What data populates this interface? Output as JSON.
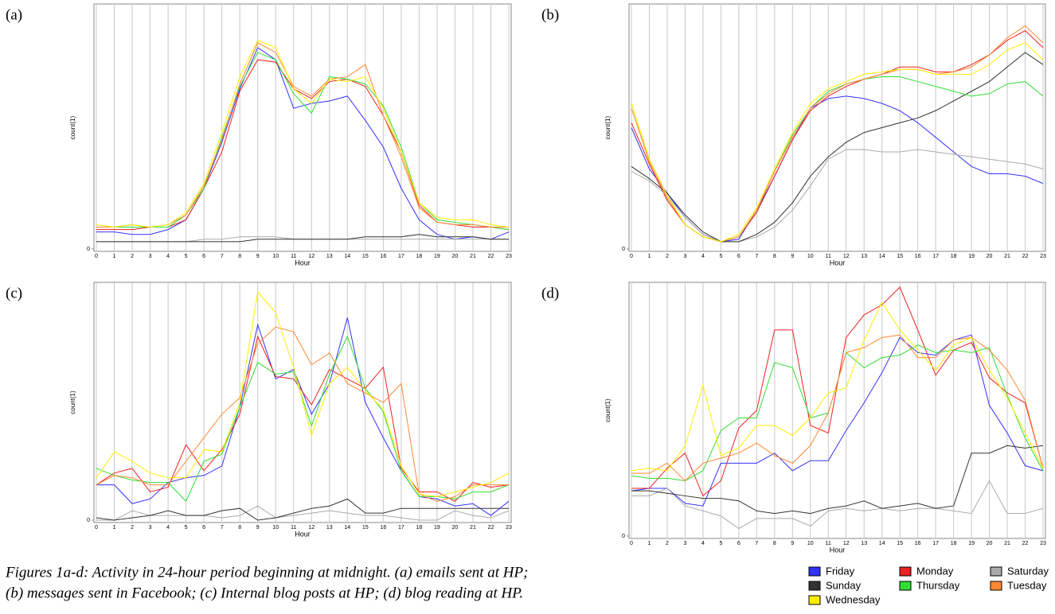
{
  "chart_data": [
    {
      "type": "line",
      "panel": "(a)",
      "x_label": "Hour",
      "y_label": "count(1)",
      "categories": [
        "0",
        "1",
        "2",
        "3",
        "4",
        "5",
        "6",
        "7",
        "8",
        "9",
        "10",
        "11",
        "12",
        "13",
        "14",
        "15",
        "16",
        "17",
        "18",
        "19",
        "20",
        "21",
        "22",
        "23"
      ],
      "ylim": [
        0,
        100
      ],
      "yticks": [
        0
      ],
      "grid": true,
      "series": [
        {
          "name": "Friday",
          "color": "#3333ff",
          "values": [
            7,
            7,
            6,
            6,
            8,
            12,
            25,
            44,
            66,
            83,
            78,
            58,
            60,
            61,
            63,
            53,
            42,
            25,
            12,
            6,
            4,
            5,
            4,
            7
          ]
        },
        {
          "name": "Monday",
          "color": "#ee2222",
          "values": [
            8,
            8,
            8,
            9,
            9,
            12,
            25,
            40,
            65,
            78,
            77,
            66,
            62,
            69,
            70,
            67,
            55,
            40,
            18,
            11,
            10,
            9,
            9,
            8
          ]
        },
        {
          "name": "Saturday",
          "color": "#aaaaaa",
          "values": [
            3,
            3,
            3,
            3,
            3,
            3,
            4,
            4,
            5,
            5,
            5,
            4,
            4,
            4,
            4,
            4,
            4,
            4,
            4,
            4,
            4,
            4,
            4,
            4
          ]
        },
        {
          "name": "Sunday",
          "color": "#333333",
          "values": [
            3,
            3,
            3,
            3,
            3,
            3,
            3,
            3,
            3,
            4,
            4,
            4,
            4,
            4,
            4,
            5,
            5,
            5,
            6,
            5,
            5,
            5,
            4,
            4
          ]
        },
        {
          "name": "Thursday",
          "color": "#33dd33",
          "values": [
            9,
            9,
            9,
            9,
            9,
            14,
            25,
            46,
            67,
            81,
            78,
            64,
            56,
            71,
            70,
            68,
            59,
            42,
            19,
            12,
            11,
            10,
            9,
            8
          ]
        },
        {
          "name": "Tuesday",
          "color": "#ff8833",
          "values": [
            9,
            9,
            10,
            9,
            10,
            14,
            26,
            45,
            68,
            85,
            81,
            67,
            63,
            70,
            71,
            76,
            55,
            38,
            17,
            11,
            10,
            10,
            9,
            9
          ]
        },
        {
          "name": "Wednesday",
          "color": "#ffee00",
          "values": [
            10,
            9,
            10,
            9,
            10,
            15,
            27,
            48,
            71,
            86,
            83,
            66,
            60,
            70,
            69,
            71,
            58,
            40,
            19,
            13,
            12,
            12,
            10,
            9
          ]
        }
      ]
    },
    {
      "type": "line",
      "panel": "(b)",
      "x_label": "Hour",
      "y_label": "count(1)",
      "categories": [
        "0",
        "1",
        "2",
        "3",
        "4",
        "5",
        "6",
        "7",
        "8",
        "9",
        "10",
        "11",
        "12",
        "13",
        "14",
        "15",
        "16",
        "17",
        "18",
        "19",
        "20",
        "21",
        "22",
        "23"
      ],
      "ylim": [
        0,
        100
      ],
      "yticks": [
        0
      ],
      "grid": true,
      "series": [
        {
          "name": "Friday",
          "color": "#3333ff",
          "values": [
            50,
            33,
            23,
            13,
            6,
            3,
            4,
            16,
            30,
            45,
            58,
            62,
            63,
            62,
            60,
            57,
            52,
            46,
            40,
            34,
            31,
            31,
            30,
            27
          ]
        },
        {
          "name": "Monday",
          "color": "#ee2222",
          "values": [
            52,
            35,
            20,
            10,
            5,
            3,
            5,
            15,
            30,
            45,
            57,
            63,
            67,
            70,
            72,
            75,
            75,
            73,
            73,
            76,
            80,
            86,
            90,
            83
          ]
        },
        {
          "name": "Saturday",
          "color": "#aaaaaa",
          "values": [
            32,
            28,
            22,
            13,
            6,
            3,
            3,
            5,
            9,
            16,
            26,
            37,
            41,
            41,
            40,
            40,
            41,
            40,
            39,
            38,
            37,
            36,
            35,
            33
          ]
        },
        {
          "name": "Sunday",
          "color": "#333333",
          "values": [
            34,
            29,
            23,
            14,
            7,
            3,
            3,
            6,
            11,
            19,
            30,
            38,
            44,
            48,
            50,
            52,
            54,
            57,
            61,
            65,
            69,
            75,
            81,
            76
          ]
        },
        {
          "name": "Thursday",
          "color": "#33dd33",
          "values": [
            60,
            37,
            22,
            10,
            5,
            3,
            5,
            16,
            32,
            47,
            58,
            65,
            68,
            70,
            71,
            71,
            69,
            67,
            65,
            63,
            64,
            68,
            69,
            63
          ]
        },
        {
          "name": "Tuesday",
          "color": "#ff8833",
          "values": [
            58,
            36,
            21,
            10,
            5,
            3,
            5,
            16,
            32,
            46,
            58,
            64,
            68,
            70,
            72,
            74,
            74,
            72,
            73,
            75,
            80,
            87,
            92,
            85
          ]
        },
        {
          "name": "Wednesday",
          "color": "#ffee00",
          "values": [
            60,
            37,
            22,
            10,
            5,
            3,
            6,
            17,
            33,
            48,
            60,
            66,
            69,
            72,
            73,
            74,
            74,
            72,
            72,
            72,
            76,
            82,
            85,
            78
          ]
        }
      ]
    },
    {
      "type": "line",
      "panel": "(c)",
      "x_label": "Hour",
      "y_label": "count(1)",
      "categories": [
        "0",
        "1",
        "2",
        "3",
        "4",
        "5",
        "6",
        "7",
        "8",
        "9",
        "10",
        "11",
        "12",
        "13",
        "14",
        "15",
        "16",
        "17",
        "18",
        "19",
        "20",
        "21",
        "22",
        "23"
      ],
      "ylim": [
        0,
        100
      ],
      "yticks": [
        0
      ],
      "grid": true,
      "series": [
        {
          "name": "Friday",
          "color": "#3333ff",
          "values": [
            15,
            15,
            7,
            9,
            16,
            18,
            19,
            23,
            48,
            83,
            60,
            64,
            45,
            58,
            86,
            50,
            35,
            21,
            10,
            9,
            6,
            7,
            2,
            8
          ]
        },
        {
          "name": "Monday",
          "color": "#ee2222",
          "values": [
            15,
            20,
            22,
            12,
            14,
            32,
            21,
            30,
            45,
            78,
            61,
            60,
            49,
            64,
            60,
            56,
            65,
            22,
            12,
            12,
            8,
            16,
            14,
            15
          ]
        },
        {
          "name": "Saturday",
          "color": "#aaaaaa",
          "values": [
            0,
            0,
            4,
            2,
            2,
            2,
            2,
            1,
            2,
            6,
            1,
            2,
            3,
            4,
            3,
            2,
            2,
            1,
            0,
            0,
            4,
            2,
            1,
            4
          ]
        },
        {
          "name": "Sunday",
          "color": "#333333",
          "values": [
            1,
            0,
            1,
            2,
            4,
            2,
            2,
            4,
            5,
            0,
            1,
            3,
            5,
            6,
            9,
            3,
            3,
            5,
            5,
            5,
            5,
            5,
            5,
            5
          ]
        },
        {
          "name": "Thursday",
          "color": "#33dd33",
          "values": [
            22,
            19,
            17,
            16,
            16,
            8,
            25,
            28,
            48,
            67,
            62,
            63,
            40,
            62,
            78,
            56,
            46,
            21,
            10,
            10,
            9,
            12,
            12,
            15
          ]
        },
        {
          "name": "Tuesday",
          "color": "#ff8833",
          "values": [
            15,
            19,
            18,
            15,
            15,
            25,
            35,
            45,
            52,
            75,
            82,
            80,
            66,
            71,
            58,
            54,
            50,
            58,
            11,
            8,
            10,
            15,
            15,
            15
          ]
        },
        {
          "name": "Wednesday",
          "color": "#ffee00",
          "values": [
            18,
            29,
            25,
            20,
            18,
            18,
            30,
            29,
            50,
            97,
            88,
            65,
            36,
            58,
            65,
            55,
            47,
            23,
            11,
            10,
            12,
            14,
            16,
            20
          ]
        }
      ]
    },
    {
      "type": "line",
      "panel": "(d)",
      "x_label": "Hour",
      "y_label": "count(1)",
      "categories": [
        "0",
        "1",
        "2",
        "3",
        "4",
        "5",
        "6",
        "7",
        "8",
        "9",
        "10",
        "11",
        "12",
        "13",
        "14",
        "15",
        "16",
        "17",
        "18",
        "19",
        "20",
        "21",
        "22",
        "23"
      ],
      "ylim": [
        0,
        100
      ],
      "yticks": [
        0
      ],
      "grid": true,
      "series": [
        {
          "name": "Friday",
          "color": "#3333ff",
          "values": [
            18,
            19,
            19,
            13,
            12,
            29,
            29,
            29,
            33,
            26,
            30,
            30,
            42,
            53,
            65,
            79,
            73,
            72,
            78,
            80,
            52,
            41,
            28,
            26
          ]
        },
        {
          "name": "Monday",
          "color": "#ee2222",
          "values": [
            19,
            19,
            27,
            33,
            16,
            22,
            43,
            50,
            82,
            82,
            44,
            41,
            79,
            88,
            92,
            99,
            82,
            64,
            74,
            77,
            63,
            57,
            53,
            27
          ]
        },
        {
          "name": "Saturday",
          "color": "#aaaaaa",
          "values": [
            16,
            16,
            19,
            12,
            10,
            8,
            3,
            7,
            7,
            7,
            4,
            10,
            11,
            10,
            11,
            10,
            11,
            11,
            10,
            9,
            22,
            9,
            9,
            11
          ]
        },
        {
          "name": "Sunday",
          "color": "#333333",
          "values": [
            18,
            18,
            17,
            16,
            15,
            15,
            14,
            10,
            9,
            10,
            9,
            11,
            12,
            14,
            11,
            12,
            13,
            11,
            12,
            33,
            33,
            36,
            35,
            36
          ]
        },
        {
          "name": "Thursday",
          "color": "#33dd33",
          "values": [
            24,
            23,
            23,
            22,
            26,
            42,
            47,
            47,
            69,
            67,
            47,
            49,
            73,
            67,
            71,
            72,
            76,
            73,
            74,
            73,
            75,
            56,
            39,
            26
          ]
        },
        {
          "name": "Tuesday",
          "color": "#ff8833",
          "values": [
            25,
            25,
            29,
            22,
            29,
            31,
            33,
            37,
            32,
            29,
            36,
            49,
            73,
            75,
            79,
            80,
            71,
            71,
            78,
            79,
            74,
            66,
            54,
            27
          ]
        },
        {
          "name": "Wednesday",
          "color": "#ffee00",
          "values": [
            26,
            27,
            26,
            36,
            60,
            32,
            35,
            44,
            44,
            40,
            47,
            57,
            59,
            78,
            93,
            82,
            74,
            66,
            76,
            79,
            66,
            55,
            41,
            27
          ]
        }
      ]
    }
  ],
  "caption": [
    "Figures 1a-d: Activity in 24-hour period beginning at midnight. (a) emails sent at HP;",
    "(b) messages sent in Facebook; (c) Internal blog posts at HP; (d) blog reading at HP."
  ]
}
